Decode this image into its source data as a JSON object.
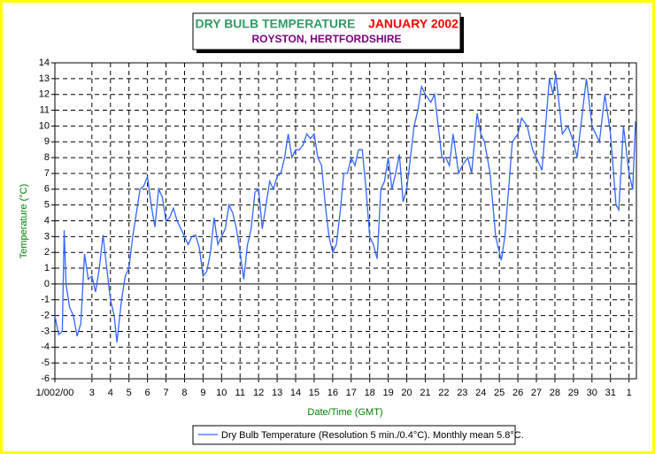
{
  "chart_data": {
    "type": "line",
    "title": "DRY BULB TEMPERATURE",
    "title_right": "JANUARY 2002",
    "subtitle": "ROYSTON, HERTFORDSHIRE",
    "x_label": "Date/Time (GMT)",
    "y_label": "Temperature (°C)",
    "xlim": [
      1,
      32.4
    ],
    "ylim": [
      -6,
      14
    ],
    "xticks": [
      {
        "value": 1,
        "label": "1/002/00"
      },
      3,
      4,
      5,
      6,
      7,
      8,
      9,
      10,
      11,
      12,
      13,
      14,
      15,
      16,
      17,
      18,
      19,
      20,
      21,
      22,
      23,
      24,
      25,
      26,
      27,
      28,
      29,
      30,
      31,
      {
        "value": 32,
        "label": "1"
      }
    ],
    "yticks": [
      -6,
      -5,
      -4,
      -3,
      -2,
      -1,
      0,
      1,
      2,
      3,
      4,
      5,
      6,
      7,
      8,
      9,
      10,
      11,
      12,
      13,
      14
    ],
    "grid": true,
    "legend": "bottom",
    "series": [
      {
        "name": "Dry Bulb Temperature (Resolution 5 min./0.4°C). Monthly mean 5.8°C.",
        "color": "#3366ff",
        "x": [
          1.0,
          1.2,
          1.4,
          1.5,
          1.6,
          1.8,
          2.0,
          2.2,
          2.4,
          2.6,
          2.8,
          3.0,
          3.2,
          3.4,
          3.6,
          3.8,
          4.0,
          4.2,
          4.35,
          4.6,
          4.8,
          5.0,
          5.2,
          5.4,
          5.6,
          5.8,
          6.0,
          6.2,
          6.4,
          6.6,
          6.8,
          7.0,
          7.2,
          7.4,
          7.6,
          7.8,
          8.0,
          8.2,
          8.4,
          8.6,
          8.8,
          9.0,
          9.2,
          9.4,
          9.6,
          9.8,
          10.0,
          10.2,
          10.4,
          10.6,
          10.8,
          11.0,
          11.2,
          11.4,
          11.6,
          11.8,
          12.0,
          12.2,
          12.4,
          12.6,
          12.8,
          13.0,
          13.2,
          13.4,
          13.6,
          13.8,
          14.0,
          14.2,
          14.4,
          14.6,
          14.8,
          15.0,
          15.2,
          15.4,
          15.6,
          15.8,
          16.0,
          16.2,
          16.4,
          16.6,
          16.8,
          17.0,
          17.2,
          17.4,
          17.6,
          17.8,
          18.0,
          18.2,
          18.4,
          18.6,
          18.8,
          19.0,
          19.2,
          19.4,
          19.6,
          19.8,
          20.0,
          20.2,
          20.4,
          20.6,
          20.8,
          21.0,
          21.3,
          21.5,
          21.7,
          21.9,
          22.1,
          22.3,
          22.5,
          22.8,
          23.0,
          23.3,
          23.5,
          23.8,
          24.0,
          24.2,
          24.5,
          24.8,
          25.1,
          25.3,
          25.7,
          26.0,
          26.2,
          26.5,
          26.8,
          27.0,
          27.3,
          27.7,
          27.9,
          28.05,
          28.4,
          28.7,
          29.0,
          29.2,
          29.7,
          30.0,
          30.4,
          30.7,
          31.0,
          31.3,
          31.45,
          31.7,
          32.0,
          32.2,
          32.35
        ],
        "values": [
          -2,
          -3.2,
          -3,
          3.4,
          0,
          -1.5,
          -2,
          -3.3,
          -2.5,
          1.9,
          0.3,
          0.5,
          -0.5,
          1,
          3.1,
          1,
          -1,
          -2,
          -3.7,
          -1,
          0.5,
          1,
          3,
          4.5,
          6,
          6.2,
          6.8,
          5,
          3.6,
          6,
          5.5,
          4,
          4.2,
          4.8,
          4,
          3.5,
          3,
          2.5,
          3,
          3.1,
          2.3,
          0.5,
          0.8,
          2,
          4.2,
          2.5,
          3,
          3.5,
          5,
          4.5,
          3.5,
          2,
          0.3,
          2.5,
          3.5,
          5.8,
          6,
          3.5,
          5,
          6.5,
          6,
          6.8,
          7,
          8,
          9.5,
          8,
          8.5,
          8.5,
          8.8,
          9.5,
          9.2,
          9.5,
          8,
          7.5,
          5,
          3,
          2,
          2.5,
          4.5,
          7,
          7,
          8,
          7.5,
          8.5,
          8.5,
          6,
          3,
          2.5,
          1.6,
          6,
          6.5,
          8,
          6,
          7,
          8.2,
          5.2,
          6,
          8,
          10,
          11,
          12.5,
          12,
          11.5,
          12,
          10,
          8,
          8,
          7.5,
          9.5,
          7,
          7.5,
          8,
          7,
          10.8,
          9.5,
          9,
          7,
          3,
          1.5,
          3,
          9,
          9.5,
          10.5,
          10,
          8.5,
          8,
          7.2,
          13,
          12,
          13.3,
          9.5,
          10,
          9,
          8,
          13,
          10,
          9,
          12,
          9.5,
          5,
          4.7,
          10,
          7,
          6,
          10.3
        ]
      }
    ]
  }
}
